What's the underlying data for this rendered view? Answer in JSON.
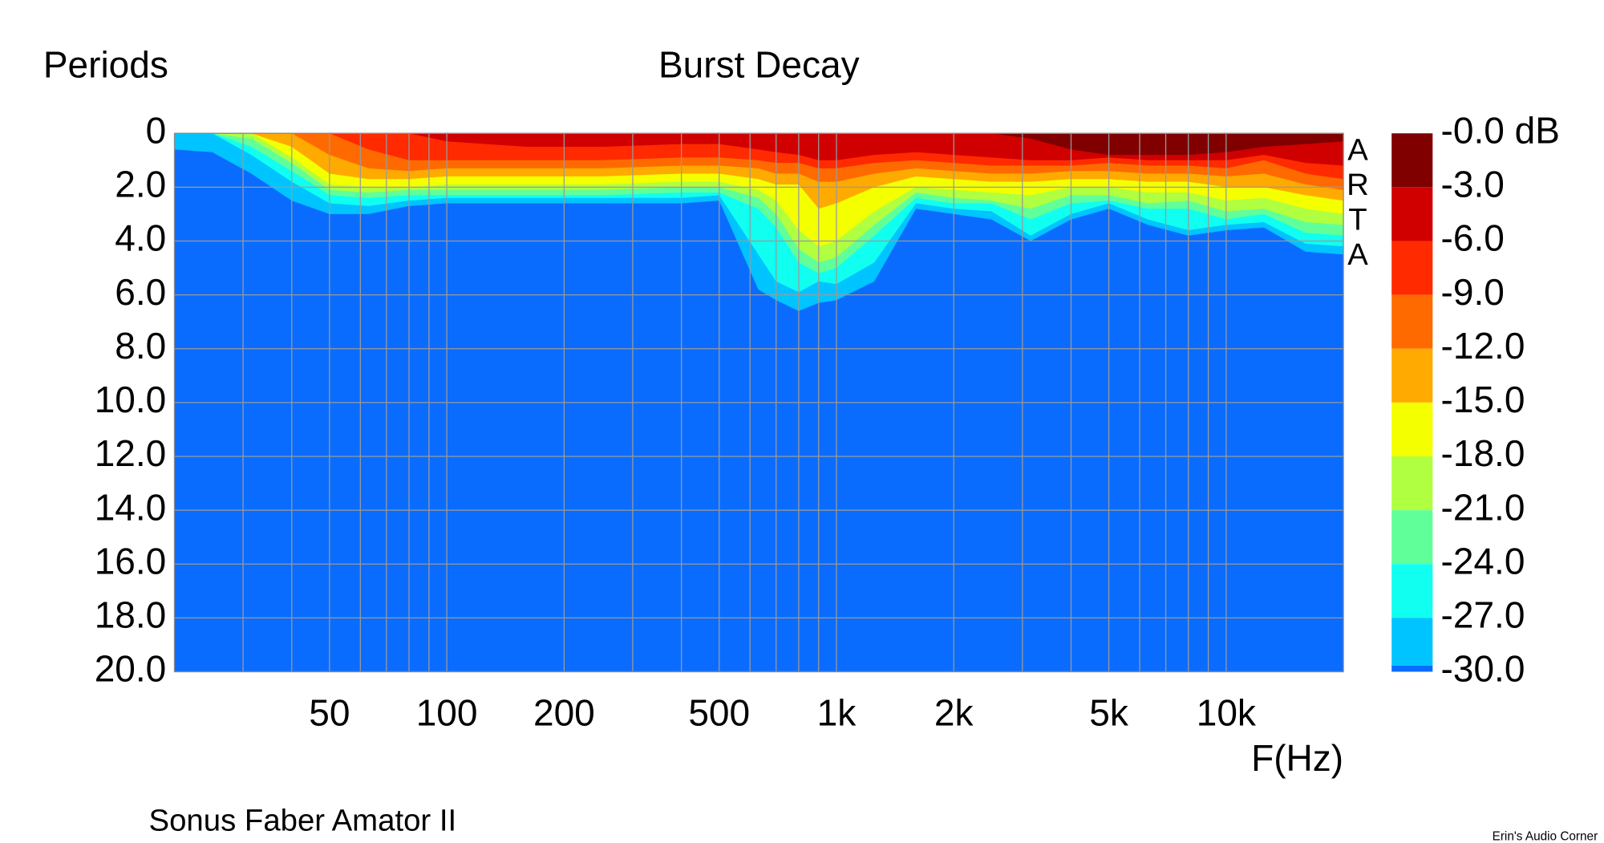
{
  "chart_data": {
    "type": "decay-map",
    "title": "Burst Decay",
    "ylabel": "Periods",
    "xlabel": "F(Hz)",
    "caption": "Sonus Faber Amator II",
    "credit": "Erin's Audio Corner",
    "watermark": "ARTA",
    "colorbar_label": "-0.0 dB",
    "background_color": "#0a6cff",
    "log_x": true,
    "grid": true,
    "xlim": [
      20,
      20000
    ],
    "xticks": [
      {
        "value": 50,
        "label": "50"
      },
      {
        "value": 100,
        "label": "100"
      },
      {
        "value": 200,
        "label": "200"
      },
      {
        "value": 500,
        "label": "500"
      },
      {
        "value": 1000,
        "label": "1k"
      },
      {
        "value": 2000,
        "label": "2k"
      },
      {
        "value": 5000,
        "label": "5k"
      },
      {
        "value": 10000,
        "label": "10k"
      }
    ],
    "xgrid": [
      30,
      40,
      60,
      70,
      80,
      90,
      300,
      400,
      600,
      700,
      800,
      900,
      3000,
      4000,
      6000,
      7000,
      8000,
      9000
    ],
    "ylim": [
      0,
      20
    ],
    "yticks": [
      0,
      {
        "value": 2,
        "label": "2.0"
      },
      {
        "value": 4,
        "label": "4.0"
      },
      {
        "value": 6,
        "label": "6.0"
      },
      {
        "value": 8,
        "label": "8.0"
      },
      {
        "value": 10,
        "label": "10.0"
      },
      {
        "value": 12,
        "label": "12.0"
      },
      {
        "value": 14,
        "label": "14.0"
      },
      {
        "value": 16,
        "label": "16.0"
      },
      {
        "value": 18,
        "label": "18.0"
      },
      {
        "value": 20,
        "label": "20.0"
      }
    ],
    "x": [
      20,
      25,
      31.5,
      40,
      50,
      63,
      80,
      100,
      160,
      250,
      400,
      500,
      630,
      700,
      800,
      900,
      1000,
      1250,
      1600,
      2000,
      2500,
      3150,
      4000,
      5000,
      6300,
      8000,
      10000,
      12500,
      16000,
      20000
    ],
    "series": [
      {
        "name": "-3.0",
        "color": "#800000",
        "values": [
          0,
          0,
          0,
          0,
          0,
          0,
          0,
          0,
          0,
          0,
          0,
          0,
          0,
          0,
          0,
          0,
          0,
          0,
          0,
          0,
          0,
          0.2,
          0.6,
          0.8,
          0.8,
          0.8,
          0.7,
          0.5,
          0.4,
          0.3
        ]
      },
      {
        "name": "-6.0",
        "color": "#d00000",
        "values": [
          0,
          0,
          0,
          0,
          0,
          0,
          0,
          0.3,
          0.5,
          0.5,
          0.4,
          0.4,
          0.6,
          0.7,
          0.8,
          1.0,
          1.0,
          0.8,
          0.7,
          0.8,
          0.9,
          1.0,
          1.0,
          0.9,
          1.0,
          1.0,
          1.0,
          0.8,
          1.1,
          1.2
        ]
      },
      {
        "name": "-9.0",
        "color": "#ff2a00",
        "values": [
          0,
          0,
          0,
          0,
          0,
          0.6,
          1.0,
          1.0,
          1.0,
          1.0,
          0.9,
          0.9,
          1.0,
          1.1,
          1.1,
          1.3,
          1.3,
          1.1,
          1.0,
          1.1,
          1.2,
          1.2,
          1.2,
          1.1,
          1.2,
          1.2,
          1.3,
          1.0,
          1.5,
          1.7
        ]
      },
      {
        "name": "-12.0",
        "color": "#ff6a00",
        "values": [
          0,
          0,
          0,
          0,
          0.8,
          1.3,
          1.4,
          1.3,
          1.3,
          1.3,
          1.2,
          1.2,
          1.3,
          1.5,
          1.5,
          1.8,
          1.8,
          1.5,
          1.3,
          1.4,
          1.5,
          1.5,
          1.4,
          1.4,
          1.5,
          1.5,
          1.6,
          1.5,
          1.9,
          2.1
        ]
      },
      {
        "name": "-15.0",
        "color": "#ffaa00",
        "values": [
          0,
          0,
          0,
          0.5,
          1.5,
          1.7,
          1.7,
          1.6,
          1.6,
          1.6,
          1.5,
          1.5,
          1.7,
          1.9,
          1.9,
          2.8,
          2.6,
          2.0,
          1.6,
          1.7,
          1.8,
          1.8,
          1.7,
          1.7,
          1.8,
          1.8,
          2.0,
          2.0,
          2.3,
          2.5
        ]
      },
      {
        "name": "-18.0",
        "color": "#f4ff00",
        "values": [
          0,
          0,
          0,
          0.9,
          1.9,
          2.0,
          2.0,
          1.9,
          1.9,
          1.9,
          1.8,
          1.8,
          2.1,
          2.5,
          3.6,
          4.2,
          4.0,
          2.9,
          2.0,
          2.1,
          2.2,
          2.3,
          2.0,
          2.0,
          2.2,
          2.2,
          2.5,
          2.4,
          2.8,
          3.0
        ]
      },
      {
        "name": "-21.0",
        "color": "#b0ff40",
        "values": [
          0,
          0,
          0.2,
          1.1,
          2.1,
          2.2,
          2.1,
          2.1,
          2.1,
          2.1,
          2.0,
          2.0,
          2.4,
          3.0,
          4.3,
          4.8,
          4.6,
          3.4,
          2.2,
          2.4,
          2.5,
          2.8,
          2.3,
          2.3,
          2.6,
          2.5,
          2.9,
          2.8,
          3.3,
          3.4
        ]
      },
      {
        "name": "-24.0",
        "color": "#60ff9a",
        "values": [
          0,
          0,
          0.5,
          1.4,
          2.3,
          2.4,
          2.3,
          2.3,
          2.3,
          2.3,
          2.2,
          2.2,
          2.8,
          3.5,
          4.8,
          5.2,
          5.0,
          3.8,
          2.4,
          2.6,
          2.6,
          3.2,
          2.6,
          2.5,
          2.8,
          2.8,
          3.2,
          3.0,
          3.7,
          3.8
        ]
      },
      {
        "name": "-27.0",
        "color": "#10fff0",
        "values": [
          0,
          0,
          0.8,
          1.8,
          2.6,
          2.7,
          2.5,
          2.4,
          2.4,
          2.4,
          2.4,
          2.3,
          4.5,
          5.5,
          5.9,
          5.5,
          5.6,
          4.8,
          2.6,
          2.8,
          2.9,
          3.8,
          3.0,
          2.6,
          3.2,
          3.6,
          3.4,
          3.3,
          4.1,
          4.2
        ]
      },
      {
        "name": "-30.0",
        "color": "#00c4ff",
        "values": [
          0.6,
          0.7,
          1.5,
          2.5,
          3.0,
          3.0,
          2.7,
          2.6,
          2.6,
          2.6,
          2.6,
          2.5,
          5.8,
          6.2,
          6.6,
          6.3,
          6.2,
          5.5,
          2.8,
          3.0,
          3.2,
          4.0,
          3.2,
          2.8,
          3.4,
          3.8,
          3.6,
          3.5,
          4.4,
          4.5
        ]
      }
    ]
  }
}
